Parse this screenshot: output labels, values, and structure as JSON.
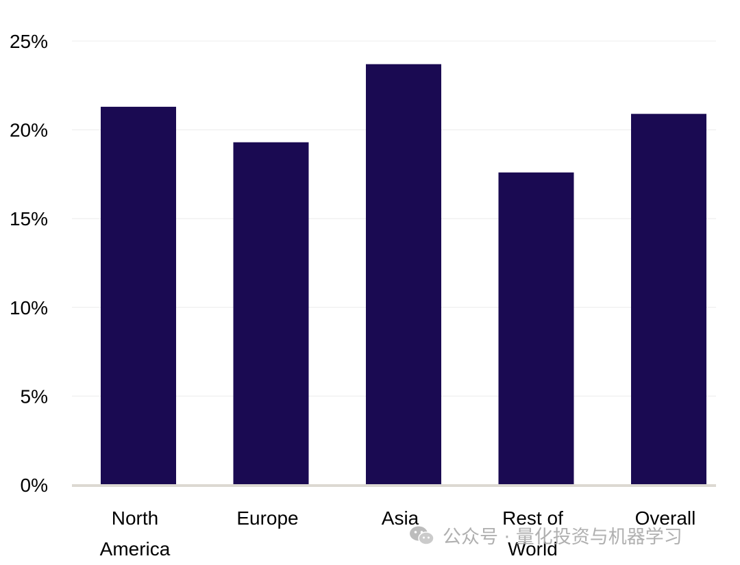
{
  "chart_data": {
    "type": "bar",
    "categories": [
      "North America",
      "Europe",
      "Asia",
      "Rest of World",
      "Overall"
    ],
    "category_lines": [
      [
        "North",
        "America"
      ],
      [
        "Europe"
      ],
      [
        "Asia"
      ],
      [
        "Rest of",
        "World"
      ],
      [
        "Overall"
      ]
    ],
    "values": [
      21.3,
      19.3,
      23.7,
      17.6,
      20.9
    ],
    "ylim": [
      0,
      25
    ],
    "yticks": [
      0,
      5,
      10,
      15,
      20,
      25
    ],
    "ytick_labels": [
      "0%",
      "5%",
      "10%",
      "15%",
      "20%",
      "25%"
    ],
    "title": "",
    "xlabel": "",
    "ylabel": "",
    "grid": true,
    "bar_color": "#1a0a52"
  },
  "watermark": {
    "text": "公众号 · 量化投资与机器学习",
    "icon": "wechat-icon"
  }
}
